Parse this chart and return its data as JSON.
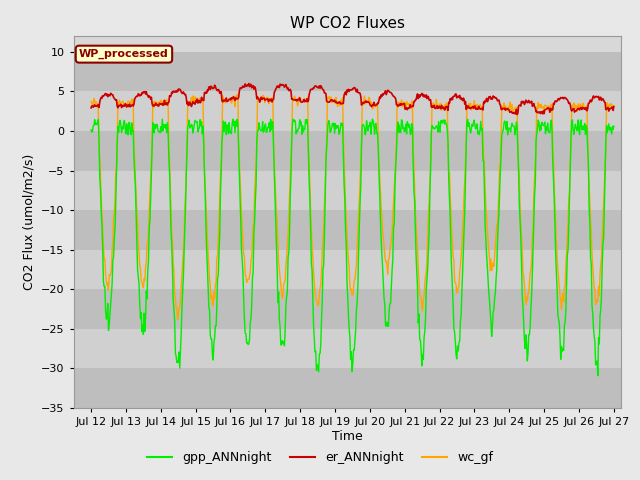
{
  "title": "WP CO2 Fluxes",
  "xlabel": "Time",
  "ylabel": "CO2 Flux (umol/m2/s)",
  "ylim": [
    -35,
    12
  ],
  "yticks": [
    -35,
    -30,
    -25,
    -20,
    -15,
    -10,
    -5,
    0,
    5,
    10
  ],
  "xlim_left": 11.5,
  "xlim_right": 27.2,
  "xtick_positions": [
    12,
    13,
    14,
    15,
    16,
    17,
    18,
    19,
    20,
    21,
    22,
    23,
    24,
    25,
    26,
    27
  ],
  "color_gpp": "#00EE00",
  "color_er": "#CC0000",
  "color_wc": "#FFA500",
  "fig_bg_color": "#E8E8E8",
  "plot_bg_color": "#D8D8D8",
  "grid_band_color": "#C8C8C8",
  "white_band_color": "#E0E0E0",
  "legend_label_gpp": "gpp_ANNnight",
  "legend_label_er": "er_ANNnight",
  "legend_label_wc": "wc_gf",
  "watermark_text": "WP_processed",
  "watermark_color": "#8B0000",
  "watermark_bg": "#FFFFCC",
  "watermark_edge": "#8B0000",
  "n_days": 15,
  "pts_per_day": 48,
  "title_fontsize": 11,
  "axis_label_fontsize": 9,
  "tick_fontsize": 8,
  "legend_fontsize": 9
}
